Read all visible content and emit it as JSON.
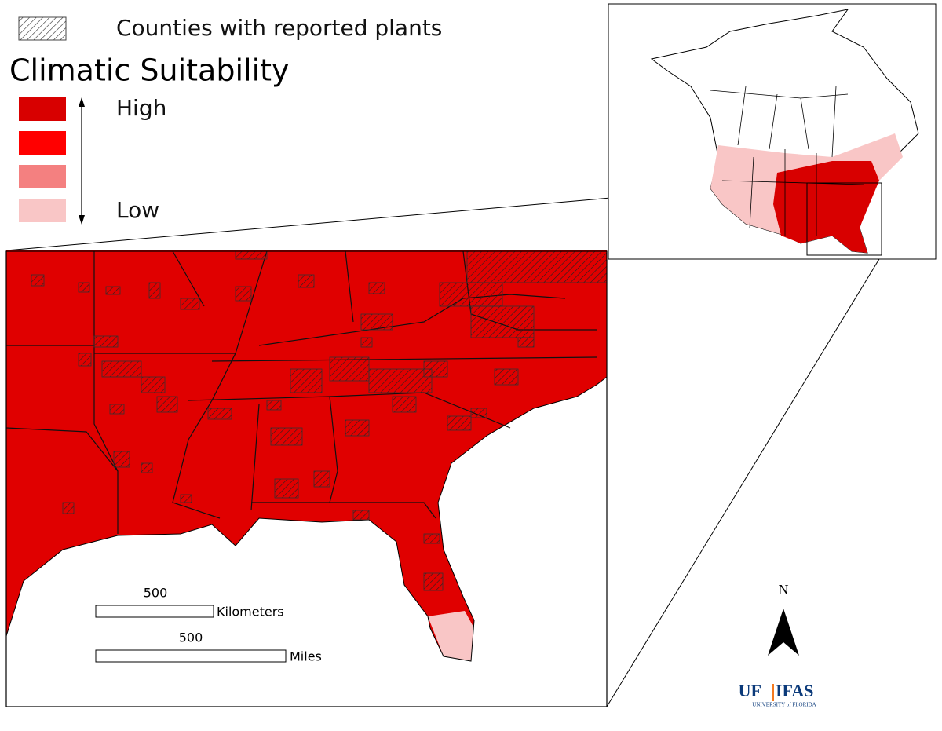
{
  "legend": {
    "hatch_label": "Counties with reported plants",
    "title": "Climatic Suitability",
    "high_label": "High",
    "low_label": "Low",
    "colors": [
      "#d80000",
      "#ff0000",
      "#f48080",
      "#f9c6c6"
    ]
  },
  "scale_bars": [
    {
      "distance": 500,
      "unit": "Kilometers"
    },
    {
      "distance": 500,
      "unit": "Miles"
    }
  ],
  "north_arrow": {
    "label": "N"
  },
  "logo": {
    "left": "UF",
    "right": "IFAS",
    "subtitle": "UNIVERSITY of FLORIDA"
  }
}
